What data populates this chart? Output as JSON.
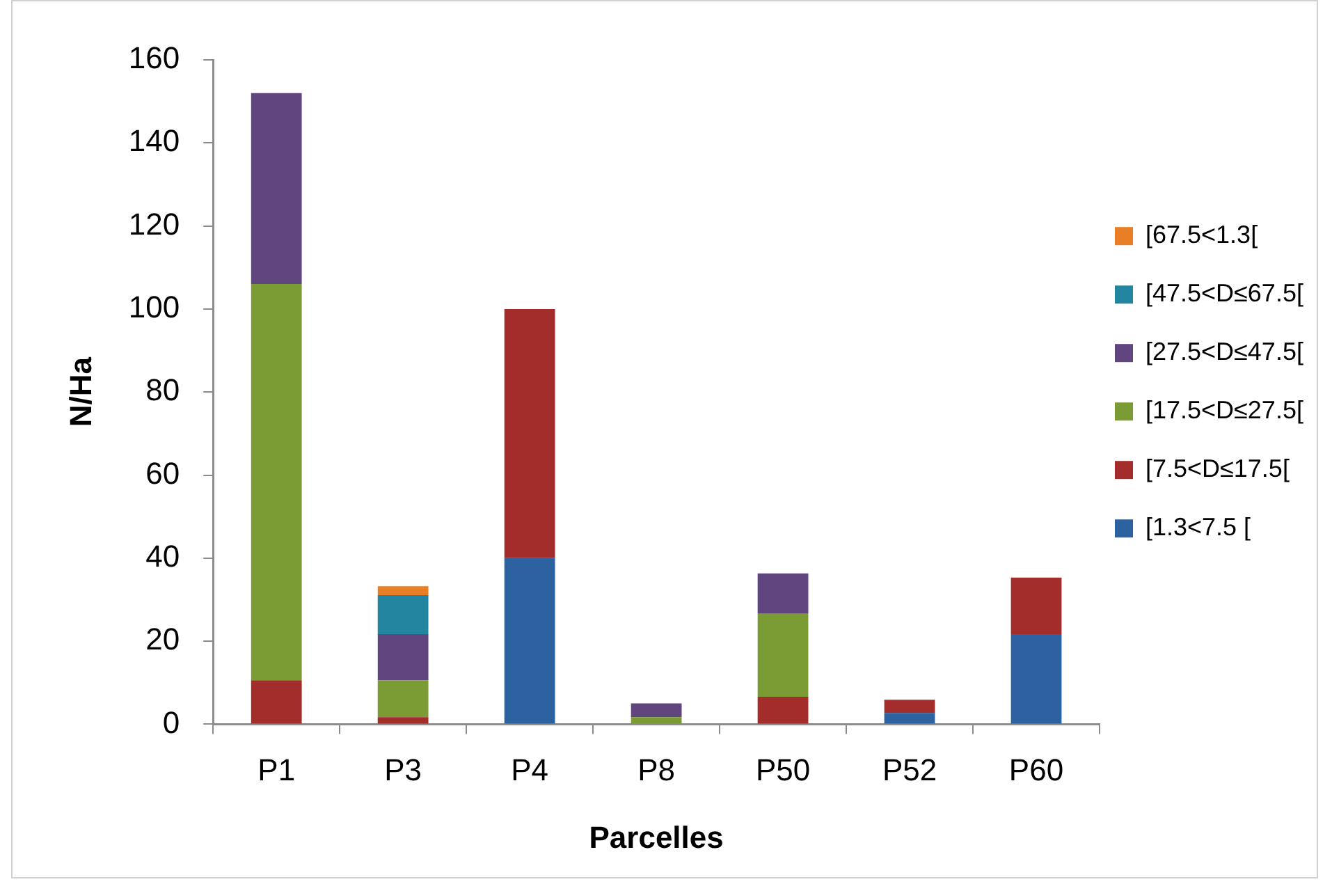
{
  "chart_data": {
    "type": "bar",
    "xlabel": "Parcelles",
    "ylabel": "N/Ha",
    "categories": [
      "P1",
      "P3",
      "P4",
      "P8",
      "P50",
      "P52",
      "P60"
    ],
    "series": [
      {
        "name": "[1.3<7.5 [",
        "color": "#2d62a0",
        "values": [
          null,
          null,
          40,
          null,
          null,
          2.7,
          21.7
        ]
      },
      {
        "name": "[7.5<D≤17.5[",
        "color": "#a32d2b",
        "values": [
          10.6,
          1.7,
          60,
          null,
          6.6,
          3.2,
          13.6
        ]
      },
      {
        "name": "[17.5<D≤27.5[",
        "color": "#7b9b35",
        "values": [
          95.4,
          8.9,
          null,
          1.7,
          20,
          null,
          null
        ]
      },
      {
        "name": "[27.5<D≤47.5[",
        "color": "#60457f",
        "values": [
          46,
          11.1,
          null,
          3.3,
          9.7,
          null,
          null
        ]
      },
      {
        "name": "[47.5<D≤67.5[",
        "color": "#2485a0",
        "values": [
          null,
          9.4,
          null,
          null,
          null,
          null,
          null
        ]
      },
      {
        "name": "[67.5<1.3[",
        "color": "#e87e25",
        "values": [
          null,
          2.1,
          null,
          null,
          null,
          null,
          null
        ]
      }
    ],
    "stacked": true,
    "ylim": [
      0,
      160
    ],
    "yticks": [
      0,
      20,
      40,
      60,
      80,
      100,
      120,
      140,
      160
    ],
    "grid": false,
    "legend": "right"
  }
}
